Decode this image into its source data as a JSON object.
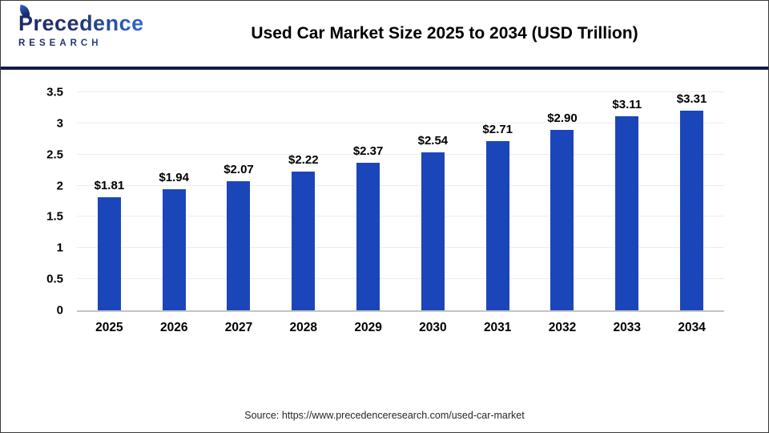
{
  "header": {
    "logo": {
      "line1": "Precedence",
      "line2": "RESEARCH"
    },
    "title": "Used Car Market Size 2025 to 2034 (USD Trillion)"
  },
  "footer": {
    "source": "Source: https://www.precedenceresearch.com/used-car-market"
  },
  "colors": {
    "bar": "#1b46ba",
    "divider": "#131b4b",
    "gridline": "#ececec",
    "axis_line": "#c4c4c4",
    "logo_navy": "#1d2a66",
    "logo_blue": "#2f6ad8"
  },
  "chart_data": {
    "type": "bar",
    "title": "Used Car Market Size 2025 to 2034 (USD Trillion)",
    "categories": [
      "2025",
      "2026",
      "2027",
      "2028",
      "2029",
      "2030",
      "2031",
      "2032",
      "2033",
      "2034"
    ],
    "values": [
      1.81,
      1.94,
      2.07,
      2.22,
      2.37,
      2.54,
      2.71,
      2.9,
      3.11,
      3.31
    ],
    "value_labels": [
      "$1.81",
      "$1.94",
      "$2.07",
      "$2.22",
      "$2.37",
      "$2.54",
      "$2.71",
      "$2.90",
      "$3.11",
      "$3.31"
    ],
    "xlabel": "",
    "ylabel": "",
    "ylim": [
      0,
      3.5
    ],
    "yticks": [
      "0",
      "0.5",
      "1",
      "1.5",
      "2",
      "2.5",
      "3",
      "3.5"
    ],
    "grid": "horizontal",
    "legend": "none"
  }
}
